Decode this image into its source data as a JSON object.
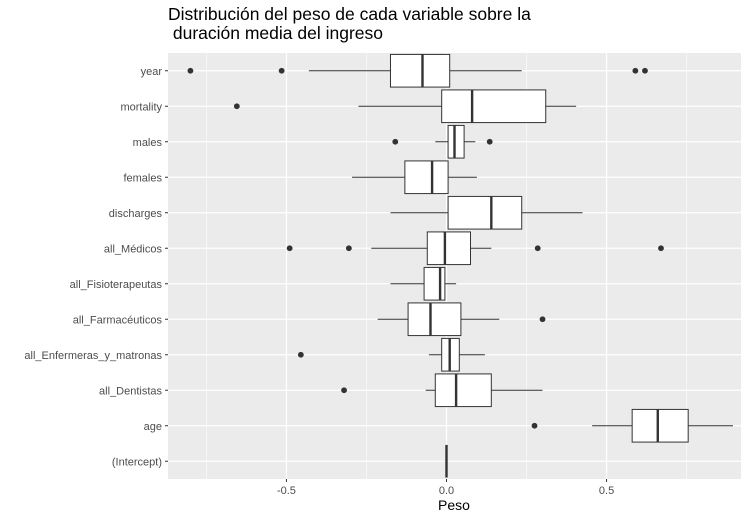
{
  "chart_data": {
    "type": "boxplot",
    "title": "Distribución del peso de cada variable sobre la\n duración media del ingreso",
    "xlabel": "Peso",
    "ylabel": "",
    "xlim": [
      -0.87,
      0.92
    ],
    "x_ticks": [
      "-0.5",
      "0.0",
      "0.5"
    ],
    "x_tick_values": [
      -0.5,
      0.0,
      0.5
    ],
    "grid": true,
    "legend": "none",
    "colors": {
      "panel": "#ebebeb",
      "grid": "#ffffff",
      "box_fill": "#ffffff",
      "box_stroke": "#333333",
      "outlier": "#333333",
      "tick_text": "#4d4d4d"
    },
    "categories": [
      "year",
      "mortality",
      "males",
      "females",
      "discharges",
      "all_Médicos",
      "all_Fisioterapeutas",
      "all_Farmacéuticos",
      "all_Enfermeras_y_matronas",
      "all_Dentistas",
      "age",
      "(Intercept)"
    ],
    "boxes": [
      {
        "whisker_low": -0.43,
        "q1": -0.175,
        "median": -0.075,
        "q3": 0.01,
        "whisker_high": 0.235,
        "outliers": [
          -0.8,
          -0.515,
          0.59,
          0.62
        ]
      },
      {
        "whisker_low": -0.275,
        "q1": -0.015,
        "median": 0.08,
        "q3": 0.31,
        "whisker_high": 0.405,
        "outliers": [
          -0.655
        ]
      },
      {
        "whisker_low": -0.035,
        "q1": 0.005,
        "median": 0.025,
        "q3": 0.055,
        "whisker_high": 0.09,
        "outliers": [
          -0.16,
          0.135
        ]
      },
      {
        "whisker_low": -0.295,
        "q1": -0.13,
        "median": -0.045,
        "q3": 0.005,
        "whisker_high": 0.095,
        "outliers": []
      },
      {
        "whisker_low": -0.175,
        "q1": 0.005,
        "median": 0.14,
        "q3": 0.235,
        "whisker_high": 0.425,
        "outliers": []
      },
      {
        "whisker_low": -0.235,
        "q1": -0.06,
        "median": -0.005,
        "q3": 0.075,
        "whisker_high": 0.14,
        "outliers": [
          -0.49,
          -0.305,
          0.285,
          0.67
        ]
      },
      {
        "whisker_low": -0.175,
        "q1": -0.07,
        "median": -0.02,
        "q3": -0.005,
        "whisker_high": 0.03,
        "outliers": []
      },
      {
        "whisker_low": -0.215,
        "q1": -0.12,
        "median": -0.05,
        "q3": 0.045,
        "whisker_high": 0.165,
        "outliers": [
          0.3
        ]
      },
      {
        "whisker_low": -0.055,
        "q1": -0.015,
        "median": 0.01,
        "q3": 0.04,
        "whisker_high": 0.12,
        "outliers": [
          -0.455
        ]
      },
      {
        "whisker_low": -0.065,
        "q1": -0.035,
        "median": 0.03,
        "q3": 0.14,
        "whisker_high": 0.3,
        "outliers": [
          -0.32
        ]
      },
      {
        "whisker_low": 0.455,
        "q1": 0.58,
        "median": 0.66,
        "q3": 0.755,
        "whisker_high": 0.895,
        "outliers": [
          0.275
        ]
      },
      {
        "whisker_low": 0.0,
        "q1": 0.0,
        "median": 0.0,
        "q3": 0.0,
        "whisker_high": 0.0,
        "outliers": []
      }
    ]
  }
}
